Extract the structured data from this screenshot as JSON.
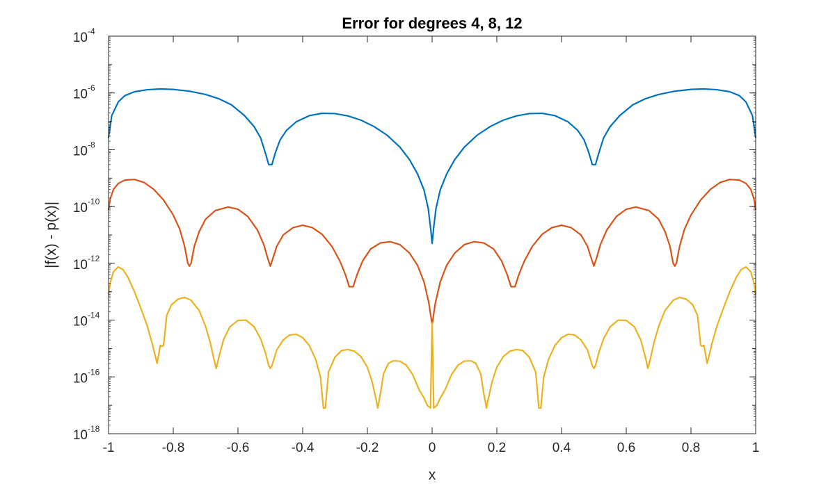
{
  "chart_data": {
    "type": "line",
    "title": "Error for degrees 4, 8, 12",
    "xlabel": "x",
    "ylabel": "|f(x) - p(x)|",
    "xlim": [
      -1,
      1
    ],
    "ylim": [
      1e-18,
      0.0001
    ],
    "yscale": "log",
    "grid": false,
    "box": true,
    "x_ticks": [
      "-1",
      "-0.8",
      "-0.6",
      "-0.4",
      "-0.2",
      "0",
      "0.2",
      "0.4",
      "0.6",
      "0.8",
      "1"
    ],
    "y_ticks": [
      {
        "base": "10",
        "exp": "-4"
      },
      {
        "base": "10",
        "exp": "-6"
      },
      {
        "base": "10",
        "exp": "-8"
      },
      {
        "base": "10",
        "exp": "-10"
      },
      {
        "base": "10",
        "exp": "-12"
      },
      {
        "base": "10",
        "exp": "-14"
      },
      {
        "base": "10",
        "exp": "-16"
      },
      {
        "base": "10",
        "exp": "-18"
      }
    ],
    "series": [
      {
        "color": "#0072BD",
        "degree": 4,
        "x": [
          -1,
          -0.99,
          -0.97,
          -0.95,
          -0.92,
          -0.88,
          -0.84,
          -0.8,
          -0.75,
          -0.7,
          -0.66,
          -0.62,
          -0.58,
          -0.55,
          -0.53,
          -0.515,
          -0.505,
          -0.5,
          -0.495,
          -0.485,
          -0.47,
          -0.45,
          -0.42,
          -0.38,
          -0.34,
          -0.3,
          -0.26,
          -0.22,
          -0.18,
          -0.14,
          -0.1,
          -0.07,
          -0.045,
          -0.025,
          -0.012,
          -0.004,
          0,
          0.004,
          0.012,
          0.025,
          0.045,
          0.07,
          0.1,
          0.14,
          0.18,
          0.22,
          0.26,
          0.3,
          0.34,
          0.38,
          0.42,
          0.45,
          0.47,
          0.485,
          0.495,
          0.5,
          0.505,
          0.515,
          0.53,
          0.55,
          0.58,
          0.62,
          0.66,
          0.7,
          0.75,
          0.8,
          0.84,
          0.88,
          0.92,
          0.95,
          0.97,
          0.99,
          1
        ],
        "y": [
          2.7e-08,
          1.6e-07,
          4.8e-07,
          8e-07,
          1.1e-06,
          1.3e-06,
          1.38e-06,
          1.33e-06,
          1.15e-06,
          8.8e-07,
          6.3e-07,
          3.8e-07,
          1.6e-07,
          6.5e-08,
          2.6e-08,
          7.5e-09,
          3e-09,
          3e-09,
          3e-09,
          7.5e-09,
          2.2e-08,
          4.8e-08,
          9.6e-08,
          1.58e-07,
          1.92e-07,
          1.87e-07,
          1.55e-07,
          1.1e-07,
          6.6e-08,
          3.3e-08,
          1.25e-08,
          4.5e-09,
          1.4e-09,
          3.8e-10,
          8.5e-11,
          1.5e-11,
          5e-12,
          1.5e-11,
          8.5e-11,
          3.8e-10,
          1.4e-09,
          4.5e-09,
          1.25e-08,
          3.3e-08,
          6.6e-08,
          1.1e-07,
          1.55e-07,
          1.87e-07,
          1.92e-07,
          1.58e-07,
          9.6e-08,
          4.8e-08,
          2.2e-08,
          7.5e-09,
          3e-09,
          3e-09,
          3e-09,
          7.5e-09,
          2.6e-08,
          6.5e-08,
          1.6e-07,
          3.8e-07,
          6.3e-07,
          8.8e-07,
          1.15e-06,
          1.33e-06,
          1.38e-06,
          1.3e-06,
          1.1e-06,
          8e-07,
          4.8e-07,
          1.6e-07,
          2.7e-08
        ]
      },
      {
        "color": "#D95319",
        "degree": 8,
        "x": [
          -1,
          -0.995,
          -0.985,
          -0.97,
          -0.95,
          -0.92,
          -0.89,
          -0.86,
          -0.83,
          -0.8,
          -0.78,
          -0.765,
          -0.755,
          -0.75,
          -0.745,
          -0.735,
          -0.72,
          -0.7,
          -0.67,
          -0.63,
          -0.6,
          -0.57,
          -0.54,
          -0.52,
          -0.508,
          -0.5,
          -0.492,
          -0.48,
          -0.46,
          -0.43,
          -0.4,
          -0.37,
          -0.34,
          -0.31,
          -0.285,
          -0.268,
          -0.256,
          -0.25,
          -0.244,
          -0.232,
          -0.215,
          -0.19,
          -0.16,
          -0.13,
          -0.1,
          -0.07,
          -0.045,
          -0.025,
          -0.01,
          0,
          0.01,
          0.025,
          0.045,
          0.07,
          0.1,
          0.13,
          0.16,
          0.19,
          0.215,
          0.232,
          0.244,
          0.25,
          0.256,
          0.268,
          0.285,
          0.31,
          0.34,
          0.37,
          0.4,
          0.43,
          0.46,
          0.48,
          0.492,
          0.5,
          0.508,
          0.52,
          0.54,
          0.57,
          0.6,
          0.63,
          0.67,
          0.7,
          0.72,
          0.735,
          0.745,
          0.75,
          0.755,
          0.765,
          0.78,
          0.8,
          0.83,
          0.86,
          0.89,
          0.92,
          0.95,
          0.97,
          0.985,
          0.995,
          1
        ],
        "y": [
          8e-11,
          1.8e-10,
          4e-10,
          6.5e-10,
          8.5e-10,
          9e-10,
          7e-10,
          4e-10,
          1.7e-10,
          5e-11,
          1.6e-11,
          4e-12,
          1e-12,
          8e-13,
          1e-12,
          4e-12,
          1.3e-11,
          3.6e-11,
          7.2e-11,
          9.6e-11,
          8e-11,
          4.5e-11,
          1.5e-11,
          4.5e-12,
          1.5e-12,
          8e-13,
          1.5e-12,
          4e-12,
          1e-11,
          1.8e-11,
          2.2e-11,
          1.8e-11,
          1.05e-11,
          4e-12,
          1.2e-12,
          4e-13,
          1.5e-13,
          1.5e-13,
          1.5e-13,
          4e-13,
          1.2e-12,
          3.2e-12,
          5.2e-12,
          5.8e-12,
          4.6e-12,
          2.3e-12,
          8.5e-13,
          2.2e-13,
          4e-14,
          7e-15,
          4e-14,
          2.2e-13,
          8.5e-13,
          2.3e-12,
          4.6e-12,
          5.8e-12,
          5.2e-12,
          3.2e-12,
          1.2e-12,
          4e-13,
          1.5e-13,
          1.5e-13,
          1.5e-13,
          4e-13,
          1.2e-12,
          4e-12,
          1.05e-11,
          1.8e-11,
          2.2e-11,
          1.8e-11,
          1e-11,
          4e-12,
          1.5e-12,
          8e-13,
          1.5e-12,
          4.5e-12,
          1.5e-11,
          4.5e-11,
          8e-11,
          9.6e-11,
          7.2e-11,
          3.6e-11,
          1.3e-11,
          4e-12,
          1e-12,
          8e-13,
          1e-12,
          4e-12,
          1.6e-11,
          5e-11,
          1.7e-10,
          4e-10,
          7e-10,
          9e-10,
          8.5e-10,
          6.5e-10,
          4e-10,
          1.8e-10,
          8e-11
        ]
      },
      {
        "color": "#EDB120",
        "degree": 12,
        "x": [
          -1,
          -0.995,
          -0.985,
          -0.97,
          -0.955,
          -0.94,
          -0.92,
          -0.9,
          -0.88,
          -0.865,
          -0.85,
          -0.84,
          -0.835,
          -0.83,
          -0.82,
          -0.805,
          -0.785,
          -0.765,
          -0.745,
          -0.72,
          -0.7,
          -0.685,
          -0.675,
          -0.667,
          -0.66,
          -0.645,
          -0.625,
          -0.6,
          -0.575,
          -0.55,
          -0.53,
          -0.515,
          -0.505,
          -0.5,
          -0.495,
          -0.48,
          -0.46,
          -0.44,
          -0.42,
          -0.4,
          -0.38,
          -0.36,
          -0.345,
          -0.336,
          -0.33,
          -0.32,
          -0.3,
          -0.28,
          -0.26,
          -0.24,
          -0.22,
          -0.2,
          -0.185,
          -0.175,
          -0.168,
          -0.16,
          -0.15,
          -0.135,
          -0.12,
          -0.1,
          -0.08,
          -0.06,
          -0.04,
          -0.025,
          -0.015,
          -0.005,
          0,
          0.005,
          0.015,
          0.025,
          0.04,
          0.06,
          0.08,
          0.1,
          0.12,
          0.135,
          0.15,
          0.16,
          0.168,
          0.175,
          0.185,
          0.2,
          0.22,
          0.24,
          0.26,
          0.28,
          0.3,
          0.32,
          0.33,
          0.336,
          0.345,
          0.36,
          0.38,
          0.4,
          0.42,
          0.44,
          0.46,
          0.48,
          0.495,
          0.5,
          0.505,
          0.515,
          0.53,
          0.55,
          0.575,
          0.6,
          0.625,
          0.645,
          0.66,
          0.667,
          0.675,
          0.685,
          0.7,
          0.72,
          0.745,
          0.765,
          0.785,
          0.805,
          0.82,
          0.83,
          0.835,
          0.84,
          0.85,
          0.865,
          0.88,
          0.9,
          0.92,
          0.94,
          0.955,
          0.97,
          0.985,
          0.995,
          1
        ],
        "y": [
          8e-14,
          2e-13,
          5e-13,
          7.5e-13,
          6e-13,
          3.2e-13,
          1e-13,
          2.6e-14,
          6e-15,
          1.5e-15,
          3e-16,
          1.3e-15,
          1.2e-15,
          1.3e-15,
          1.5e-14,
          3.5e-14,
          5.5e-14,
          6.3e-14,
          5e-14,
          2.2e-14,
          6e-15,
          1.5e-15,
          4.5e-16,
          2e-16,
          4.5e-16,
          2e-15,
          5.8e-15,
          9.8e-15,
          1e-14,
          5.8e-15,
          2.2e-15,
          7e-16,
          2.5e-16,
          2e-16,
          2.5e-16,
          9e-16,
          2e-15,
          3e-15,
          3.2e-15,
          2.4e-15,
          1.3e-15,
          4.2e-16,
          1e-16,
          8e-18,
          8e-18,
          1.5e-16,
          5e-16,
          8.5e-16,
          9.2e-16,
          8e-16,
          5.2e-16,
          2.2e-16,
          6.5e-17,
          2e-17,
          8e-18,
          2.5e-17,
          1.3e-16,
          3e-16,
          3.7e-16,
          3.6e-16,
          2.6e-16,
          1.2e-16,
          3.5e-17,
          1.8e-17,
          1e-17,
          8e-18,
          8e-15,
          8e-18,
          1e-17,
          1.8e-17,
          3.5e-17,
          1.2e-16,
          2.6e-16,
          3.6e-16,
          3.7e-16,
          3e-16,
          1.3e-16,
          2.5e-17,
          8e-18,
          2e-17,
          6.5e-17,
          2.2e-16,
          5.2e-16,
          8e-16,
          9.2e-16,
          8.5e-16,
          5e-16,
          1.5e-16,
          8e-18,
          8e-18,
          1e-16,
          4.2e-16,
          1.3e-15,
          2.4e-15,
          3.2e-15,
          3e-15,
          2e-15,
          9e-16,
          2.5e-16,
          2e-16,
          2.5e-16,
          7e-16,
          2.2e-15,
          5.8e-15,
          1e-14,
          9.8e-15,
          5.8e-15,
          2e-15,
          4.5e-16,
          2e-16,
          4.5e-16,
          1.5e-15,
          6e-15,
          2.2e-14,
          5e-14,
          6.3e-14,
          5.5e-14,
          3.5e-14,
          1.5e-14,
          1.3e-15,
          1.2e-15,
          1.3e-15,
          3e-16,
          1.5e-15,
          6e-15,
          2.6e-14,
          1e-13,
          3.2e-13,
          6e-13,
          7.5e-13,
          5e-13,
          2e-13,
          8e-14
        ]
      }
    ]
  }
}
